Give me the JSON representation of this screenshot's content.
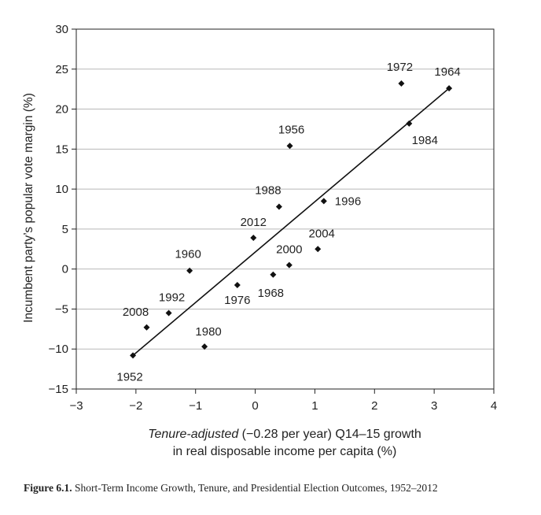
{
  "chart_data": {
    "type": "scatter",
    "xlim": [
      -3,
      4
    ],
    "ylim": [
      -15,
      30
    ],
    "xticks": [
      -3,
      -2,
      -1,
      0,
      1,
      2,
      3,
      4
    ],
    "yticks": [
      -15,
      -10,
      -5,
      0,
      5,
      10,
      15,
      20,
      25,
      30
    ],
    "grid": "horizontal",
    "ylabel": "Incumbent party’s popular vote margin (%)",
    "xlabel_italic": "Tenure-adjusted",
    "xlabel_rest": " (−0.28 per year) Q14–15 growth",
    "xlabel_line2": "in real disposable income per capita (%)",
    "points": [
      {
        "label": "1952",
        "x": -2.05,
        "y": -10.8
      },
      {
        "label": "1956",
        "x": 0.58,
        "y": 15.4
      },
      {
        "label": "1960",
        "x": -1.1,
        "y": -0.2
      },
      {
        "label": "1964",
        "x": 3.25,
        "y": 22.6
      },
      {
        "label": "1968",
        "x": 0.3,
        "y": -0.7
      },
      {
        "label": "1972",
        "x": 2.45,
        "y": 23.2
      },
      {
        "label": "1976",
        "x": -0.3,
        "y": -2.0
      },
      {
        "label": "1980",
        "x": -0.85,
        "y": -9.7
      },
      {
        "label": "1984",
        "x": 2.58,
        "y": 18.2
      },
      {
        "label": "1988",
        "x": 0.4,
        "y": 7.8
      },
      {
        "label": "1992",
        "x": -1.45,
        "y": -5.5
      },
      {
        "label": "1996",
        "x": 1.15,
        "y": 8.5
      },
      {
        "label": "2000",
        "x": 0.57,
        "y": 0.5
      },
      {
        "label": "2004",
        "x": 1.05,
        "y": 2.5
      },
      {
        "label": "2008",
        "x": -1.82,
        "y": -7.3
      },
      {
        "label": "2012",
        "x": -0.03,
        "y": 3.9
      }
    ],
    "fit_line": {
      "x": [
        -2.05,
        3.25
      ],
      "y": [
        -10.8,
        22.6
      ]
    },
    "color": "#111111"
  },
  "caption": {
    "bold": "Figure 6.1.",
    "text": " Short-Term Income Growth, Tenure, and Presidential Election Outcomes, 1952–2012"
  }
}
